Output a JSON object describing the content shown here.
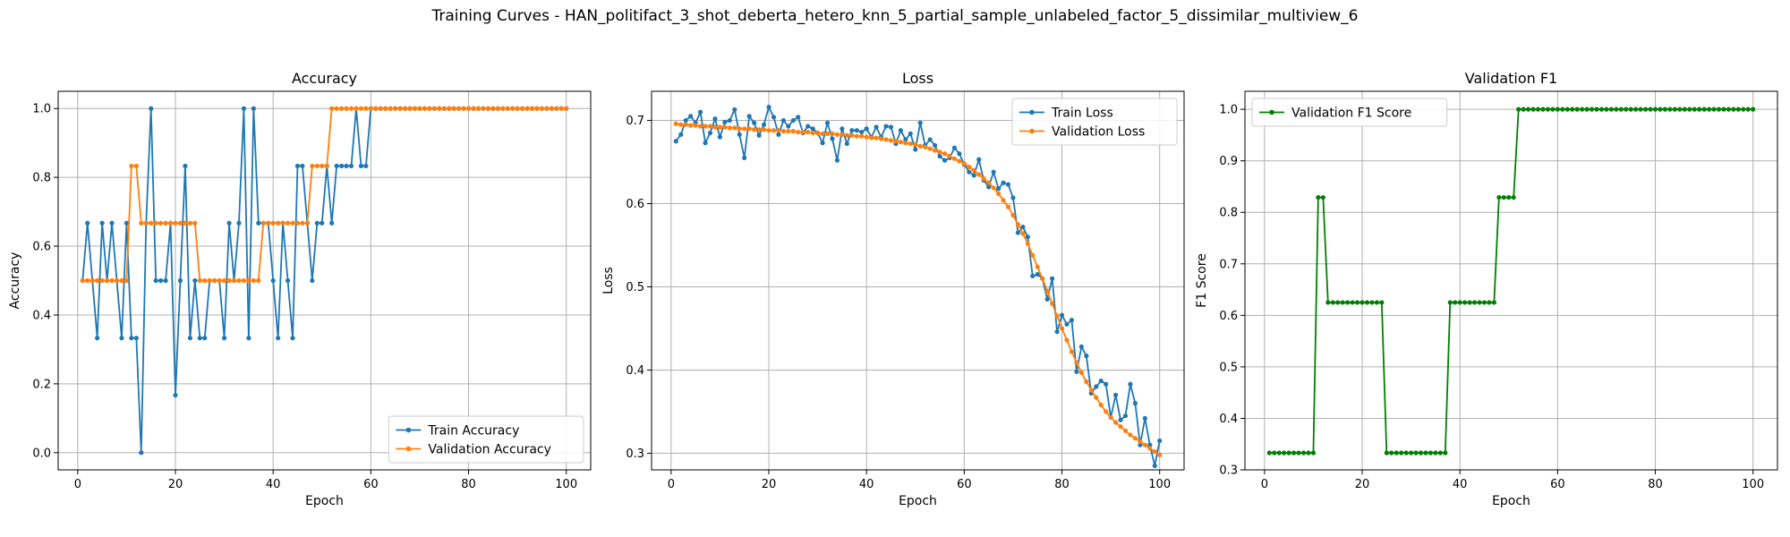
{
  "suptitle": "Training Curves - HAN_politifact_3_shot_deberta_hetero_knn_5_partial_sample_unlabeled_factor_5_dissimilar_multiview_6",
  "colors": {
    "train": "#1f77b4",
    "validation": "#ff7f0e",
    "f1": "#008000",
    "grid": "#b0b0b0"
  },
  "chart_data": [
    {
      "type": "line",
      "title": "Accuracy",
      "xlabel": "Epoch",
      "ylabel": "Accuracy",
      "xlim": [
        -4,
        105
      ],
      "ylim": [
        -0.05,
        1.05
      ],
      "xticks": [
        0,
        20,
        40,
        60,
        80,
        100
      ],
      "yticks": [
        0.0,
        0.2,
        0.4,
        0.6,
        0.8,
        1.0
      ],
      "ytick_labels": [
        "0.0",
        "0.2",
        "0.4",
        "0.6",
        "0.8",
        "1.0"
      ],
      "grid": true,
      "legend": "lower-right",
      "series": [
        {
          "name": "Train Accuracy",
          "color": "#1f77b4",
          "values": [
            0.5,
            0.667,
            0.5,
            0.333,
            0.667,
            0.5,
            0.667,
            0.5,
            0.333,
            0.667,
            0.333,
            0.333,
            0.0,
            0.667,
            1.0,
            0.5,
            0.5,
            0.5,
            0.667,
            0.167,
            0.5,
            0.833,
            0.333,
            0.5,
            0.333,
            0.333,
            0.5,
            0.5,
            0.5,
            0.333,
            0.667,
            0.5,
            0.667,
            1.0,
            0.333,
            1.0,
            0.667,
            0.667,
            0.667,
            0.5,
            0.333,
            0.667,
            0.5,
            0.333,
            0.833,
            0.833,
            0.667,
            0.5,
            0.667,
            0.667,
            0.833,
            0.667,
            0.833,
            0.833,
            0.833,
            0.833,
            1.0,
            0.833,
            0.833,
            1.0,
            1.0,
            1.0,
            1.0,
            1.0,
            1.0,
            1.0,
            1.0,
            1.0,
            1.0,
            1.0,
            1.0,
            1.0,
            1.0,
            1.0,
            1.0,
            1.0,
            1.0,
            1.0,
            1.0,
            1.0,
            1.0,
            1.0,
            1.0,
            1.0,
            1.0,
            1.0,
            1.0,
            1.0,
            1.0,
            1.0,
            1.0,
            1.0,
            1.0,
            1.0,
            1.0,
            1.0,
            1.0,
            1.0,
            1.0,
            1.0
          ]
        },
        {
          "name": "Validation Accuracy",
          "color": "#ff7f0e",
          "values": [
            0.5,
            0.5,
            0.5,
            0.5,
            0.5,
            0.5,
            0.5,
            0.5,
            0.5,
            0.5,
            0.833,
            0.833,
            0.667,
            0.667,
            0.667,
            0.667,
            0.667,
            0.667,
            0.667,
            0.667,
            0.667,
            0.667,
            0.667,
            0.667,
            0.5,
            0.5,
            0.5,
            0.5,
            0.5,
            0.5,
            0.5,
            0.5,
            0.5,
            0.5,
            0.5,
            0.5,
            0.5,
            0.667,
            0.667,
            0.667,
            0.667,
            0.667,
            0.667,
            0.667,
            0.667,
            0.667,
            0.667,
            0.833,
            0.833,
            0.833,
            0.833,
            1.0,
            1.0,
            1.0,
            1.0,
            1.0,
            1.0,
            1.0,
            1.0,
            1.0,
            1.0,
            1.0,
            1.0,
            1.0,
            1.0,
            1.0,
            1.0,
            1.0,
            1.0,
            1.0,
            1.0,
            1.0,
            1.0,
            1.0,
            1.0,
            1.0,
            1.0,
            1.0,
            1.0,
            1.0,
            1.0,
            1.0,
            1.0,
            1.0,
            1.0,
            1.0,
            1.0,
            1.0,
            1.0,
            1.0,
            1.0,
            1.0,
            1.0,
            1.0,
            1.0,
            1.0,
            1.0,
            1.0,
            1.0,
            1.0
          ]
        }
      ]
    },
    {
      "type": "line",
      "title": "Loss",
      "xlabel": "Epoch",
      "ylabel": "Loss",
      "xlim": [
        -4,
        105
      ],
      "ylim": [
        0.28,
        0.735
      ],
      "xticks": [
        0,
        20,
        40,
        60,
        80,
        100
      ],
      "yticks": [
        0.3,
        0.4,
        0.5,
        0.6,
        0.7
      ],
      "ytick_labels": [
        "0.3",
        "0.4",
        "0.5",
        "0.6",
        "0.7"
      ],
      "grid": true,
      "legend": "upper-right",
      "series": [
        {
          "name": "Train Loss",
          "color": "#1f77b4",
          "values": [
            0.675,
            0.683,
            0.7,
            0.705,
            0.697,
            0.71,
            0.673,
            0.685,
            0.702,
            0.68,
            0.698,
            0.7,
            0.713,
            0.683,
            0.655,
            0.705,
            0.697,
            0.682,
            0.695,
            0.716,
            0.704,
            0.683,
            0.7,
            0.693,
            0.7,
            0.704,
            0.685,
            0.693,
            0.69,
            0.685,
            0.673,
            0.697,
            0.678,
            0.652,
            0.69,
            0.672,
            0.688,
            0.688,
            0.686,
            0.69,
            0.68,
            0.692,
            0.68,
            0.693,
            0.692,
            0.672,
            0.688,
            0.677,
            0.684,
            0.665,
            0.697,
            0.67,
            0.677,
            0.67,
            0.657,
            0.652,
            0.655,
            0.667,
            0.66,
            0.647,
            0.638,
            0.634,
            0.653,
            0.628,
            0.62,
            0.638,
            0.618,
            0.625,
            0.623,
            0.607,
            0.565,
            0.572,
            0.56,
            0.513,
            0.515,
            0.51,
            0.485,
            0.51,
            0.446,
            0.466,
            0.455,
            0.46,
            0.398,
            0.428,
            0.417,
            0.372,
            0.38,
            0.387,
            0.383,
            0.343,
            0.37,
            0.34,
            0.345,
            0.383,
            0.36,
            0.31,
            0.342,
            0.31,
            0.285,
            0.315
          ]
        },
        {
          "name": "Validation Loss",
          "color": "#ff7f0e",
          "values": [
            0.696,
            0.695,
            0.695,
            0.694,
            0.694,
            0.693,
            0.693,
            0.693,
            0.692,
            0.692,
            0.692,
            0.691,
            0.691,
            0.69,
            0.69,
            0.69,
            0.689,
            0.689,
            0.689,
            0.688,
            0.688,
            0.688,
            0.687,
            0.687,
            0.687,
            0.686,
            0.686,
            0.686,
            0.685,
            0.685,
            0.684,
            0.684,
            0.684,
            0.683,
            0.683,
            0.682,
            0.682,
            0.681,
            0.681,
            0.68,
            0.679,
            0.679,
            0.678,
            0.677,
            0.676,
            0.675,
            0.674,
            0.673,
            0.672,
            0.671,
            0.669,
            0.668,
            0.666,
            0.664,
            0.662,
            0.66,
            0.657,
            0.654,
            0.651,
            0.648,
            0.644,
            0.64,
            0.635,
            0.63,
            0.625,
            0.619,
            0.612,
            0.604,
            0.596,
            0.586,
            0.575,
            0.564,
            0.552,
            0.538,
            0.524,
            0.51,
            0.495,
            0.48,
            0.465,
            0.45,
            0.436,
            0.422,
            0.409,
            0.397,
            0.386,
            0.376,
            0.367,
            0.358,
            0.35,
            0.343,
            0.337,
            0.332,
            0.327,
            0.322,
            0.318,
            0.314,
            0.31,
            0.306,
            0.302,
            0.298
          ]
        }
      ]
    },
    {
      "type": "line",
      "title": "Validation F1",
      "xlabel": "Epoch",
      "ylabel": "F1 Score",
      "xlim": [
        -4,
        105
      ],
      "ylim": [
        0.3,
        1.035
      ],
      "xticks": [
        0,
        20,
        40,
        60,
        80,
        100
      ],
      "yticks": [
        0.3,
        0.4,
        0.5,
        0.6,
        0.7,
        0.8,
        0.9,
        1.0
      ],
      "ytick_labels": [
        "0.3",
        "0.4",
        "0.5",
        "0.6",
        "0.7",
        "0.8",
        "0.9",
        "1.0"
      ],
      "grid": true,
      "legend": "upper-left",
      "series": [
        {
          "name": "Validation F1 Score",
          "color": "#008000",
          "values": [
            0.333,
            0.333,
            0.333,
            0.333,
            0.333,
            0.333,
            0.333,
            0.333,
            0.333,
            0.333,
            0.829,
            0.829,
            0.625,
            0.625,
            0.625,
            0.625,
            0.625,
            0.625,
            0.625,
            0.625,
            0.625,
            0.625,
            0.625,
            0.625,
            0.333,
            0.333,
            0.333,
            0.333,
            0.333,
            0.333,
            0.333,
            0.333,
            0.333,
            0.333,
            0.333,
            0.333,
            0.333,
            0.625,
            0.625,
            0.625,
            0.625,
            0.625,
            0.625,
            0.625,
            0.625,
            0.625,
            0.625,
            0.829,
            0.829,
            0.829,
            0.829,
            1.0,
            1.0,
            1.0,
            1.0,
            1.0,
            1.0,
            1.0,
            1.0,
            1.0,
            1.0,
            1.0,
            1.0,
            1.0,
            1.0,
            1.0,
            1.0,
            1.0,
            1.0,
            1.0,
            1.0,
            1.0,
            1.0,
            1.0,
            1.0,
            1.0,
            1.0,
            1.0,
            1.0,
            1.0,
            1.0,
            1.0,
            1.0,
            1.0,
            1.0,
            1.0,
            1.0,
            1.0,
            1.0,
            1.0,
            1.0,
            1.0,
            1.0,
            1.0,
            1.0,
            1.0,
            1.0,
            1.0,
            1.0,
            1.0
          ]
        }
      ]
    }
  ]
}
